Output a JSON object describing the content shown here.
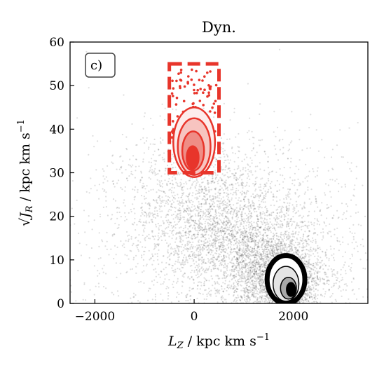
{
  "chart_data": {
    "type": "scatter",
    "title": "Dyn.",
    "panel_label": "c)",
    "xlabel_main": "L",
    "xlabel_sub": "Z",
    "xlabel_unit": " / kpc km s",
    "xlabel_exp": "−1",
    "ylabel_main": "√J",
    "ylabel_sub": "R",
    "ylabel_unit": " / kpc km s",
    "ylabel_exp": "−1",
    "xlim": [
      -2500,
      3500
    ],
    "ylim": [
      0,
      60
    ],
    "xticks": [
      -2000,
      0,
      2000
    ],
    "xtick_labels": [
      "−2000",
      "0",
      "2000"
    ],
    "yticks": [
      0,
      10,
      20,
      30,
      40,
      50,
      60
    ],
    "ytick_labels": [
      "0",
      "10",
      "20",
      "30",
      "40",
      "50",
      "60"
    ],
    "grid": false,
    "colors": {
      "selection": "#e8352b",
      "background_points": "#000000"
    },
    "selection_box": {
      "x": [
        -500,
        500
      ],
      "y": [
        30,
        55
      ]
    },
    "background_density": [
      {
        "x": 1900,
        "y": 4,
        "sx": 200,
        "sy": 2.5,
        "n": 1400
      },
      {
        "x": 1700,
        "y": 7,
        "sx": 450,
        "sy": 4,
        "n": 1800
      },
      {
        "x": 900,
        "y": 14,
        "sx": 750,
        "sy": 6,
        "n": 1600
      },
      {
        "x": 0,
        "y": 24,
        "sx": 900,
        "sy": 8,
        "n": 1200
      },
      {
        "x": 1000,
        "y": 15,
        "sx": 1600,
        "sy": 12,
        "n": 1500
      }
    ],
    "background_contours": [
      {
        "x": 1850,
        "y": 5.5,
        "rx": 380,
        "ry": 5.5,
        "fill": "#ffffff"
      },
      {
        "x": 1850,
        "y": 4.5,
        "rx": 260,
        "ry": 4,
        "fill": "#e4e4e4"
      },
      {
        "x": 1900,
        "y": 3.5,
        "rx": 160,
        "ry": 2.5,
        "fill": "#a8a8a8"
      },
      {
        "x": 1950,
        "y": 3.2,
        "rx": 90,
        "ry": 1.6,
        "fill": "#000000"
      }
    ],
    "selection_contours": [
      {
        "x": 0,
        "y": 37,
        "rx": 420,
        "ry": 8,
        "fill": "#fdeceb"
      },
      {
        "x": 0,
        "y": 36,
        "rx": 330,
        "ry": 6.5,
        "fill": "#f7c4c0"
      },
      {
        "x": -20,
        "y": 35,
        "rx": 220,
        "ry": 4.5,
        "fill": "#ef8d86"
      },
      {
        "x": -30,
        "y": 33.5,
        "rx": 120,
        "ry": 2.6,
        "fill": "#e8352b"
      }
    ],
    "selection_points": {
      "x_range": [
        -450,
        450
      ],
      "y_range": [
        38,
        54
      ],
      "n": 110
    }
  }
}
